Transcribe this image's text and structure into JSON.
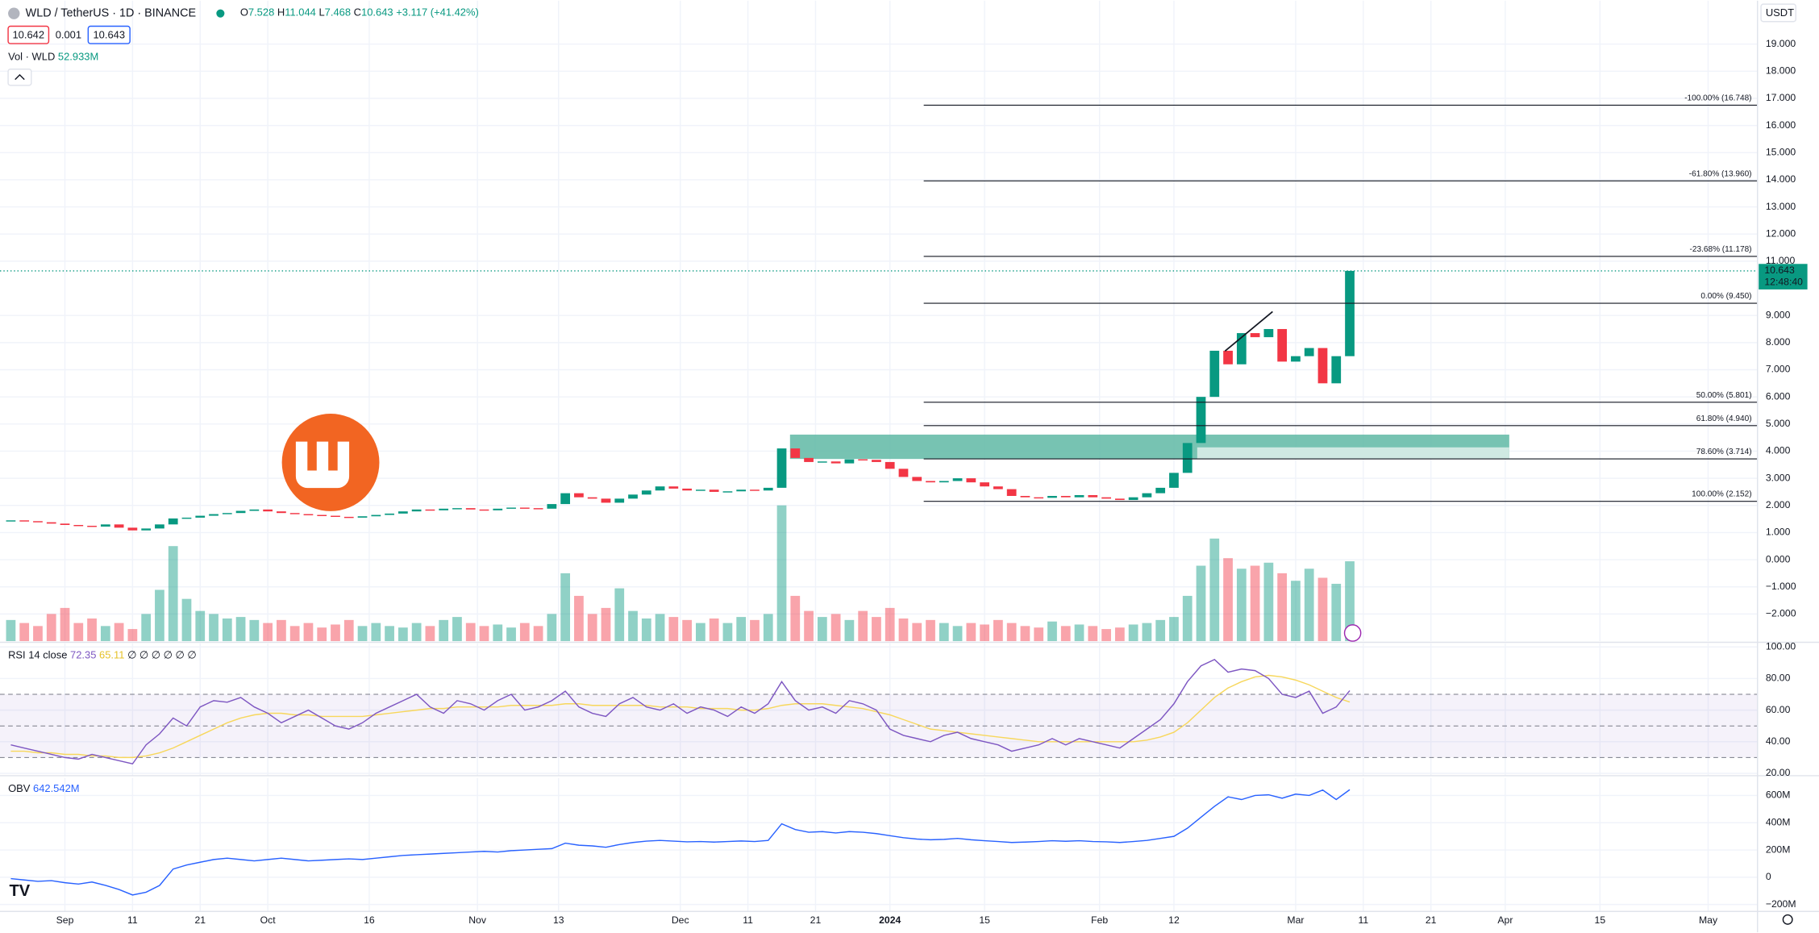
{
  "header": {
    "symbol": "WLD / TetherUS · 1D · BINANCE",
    "ohlc": [
      {
        "k": "O",
        "v": 7.528
      },
      {
        "k": "H",
        "v": 11.044
      },
      {
        "k": "L",
        "v": 7.468
      },
      {
        "k": "C",
        "v": 10.643
      }
    ],
    "change": "+3.117 (+41.42%)",
    "bid": 10.642,
    "spread": 0.001,
    "ask": 10.643,
    "vol": "Vol · WLD",
    "vol_value": "52.933M",
    "rsi": "RSI 14 close",
    "rsi_na": "∅ ∅ ∅ ∅ ∅ ∅",
    "obv": "OBV",
    "obv_value": "642.542M",
    "currency": "USDT",
    "countdown": "12:48:40"
  },
  "chart_data": [
    {
      "type": "candlestick",
      "color_up": "#089981",
      "color_down": "#f23645",
      "x": [
        -8,
        -6,
        -4,
        -2,
        0,
        2,
        4,
        6,
        8,
        10,
        12,
        14,
        16,
        18,
        20,
        22,
        24,
        26,
        28,
        30,
        32,
        34,
        36,
        38,
        40,
        42,
        44,
        46,
        48,
        50,
        52,
        54,
        56,
        58,
        60,
        62,
        64,
        66,
        68,
        70,
        72,
        74,
        76,
        78,
        80,
        82,
        84,
        86,
        88,
        90,
        92,
        94,
        96,
        98,
        100,
        102,
        104,
        106,
        108,
        110,
        112,
        114,
        116,
        118,
        120,
        122,
        124,
        126,
        128,
        130,
        132,
        134,
        136,
        138,
        140,
        142,
        144,
        146,
        148,
        150,
        152,
        154,
        156,
        158,
        160,
        162,
        164,
        166,
        168,
        170,
        172,
        174,
        176,
        178,
        180,
        182,
        184,
        186,
        188,
        190
      ],
      "values": [
        1.45,
        1.42,
        1.38,
        1.33,
        1.28,
        1.25,
        1.22,
        1.3,
        1.18,
        1.08,
        1.15,
        1.3,
        1.52,
        1.55,
        1.62,
        1.68,
        1.72,
        1.8,
        1.85,
        1.78,
        1.72,
        1.68,
        1.65,
        1.62,
        1.58,
        1.55,
        1.6,
        1.65,
        1.7,
        1.78,
        1.85,
        1.82,
        1.88,
        1.9,
        1.85,
        1.82,
        1.88,
        1.92,
        1.9,
        1.88,
        2.05,
        2.45,
        2.3,
        2.25,
        2.1,
        2.25,
        2.4,
        2.55,
        2.7,
        2.62,
        2.55,
        2.58,
        2.5,
        2.52,
        2.58,
        2.55,
        2.65,
        4.1,
        3.75,
        3.6,
        3.62,
        3.55,
        3.7,
        3.68,
        3.6,
        3.35,
        3.05,
        2.9,
        2.85,
        2.9,
        3.0,
        2.85,
        2.7,
        2.6,
        2.35,
        2.3,
        2.28,
        2.35,
        2.3,
        2.38,
        2.3,
        2.25,
        2.2,
        2.3,
        2.45,
        2.65,
        3.2,
        4.3,
        6.0,
        7.7,
        7.2,
        8.35,
        8.2,
        8.5,
        7.3,
        7.5,
        7.8,
        6.5,
        7.5,
        10.643
      ],
      "volumes": [
        14,
        12,
        10,
        18,
        22,
        12,
        15,
        10,
        12,
        8,
        18,
        34,
        63,
        28,
        20,
        18,
        15,
        16,
        14,
        12,
        14,
        10,
        12,
        9,
        11,
        14,
        10,
        12,
        10,
        9,
        12,
        10,
        14,
        16,
        12,
        10,
        11,
        9,
        12,
        10,
        18,
        45,
        30,
        18,
        22,
        35,
        20,
        15,
        18,
        16,
        14,
        12,
        15,
        12,
        16,
        14,
        18,
        90,
        30,
        20,
        16,
        18,
        14,
        20,
        16,
        22,
        15,
        12,
        14,
        12,
        10,
        12,
        11,
        14,
        12,
        10,
        9,
        13,
        10,
        11,
        10,
        8,
        9,
        11,
        12,
        14,
        16,
        30,
        50,
        68,
        55,
        48,
        50,
        52,
        45,
        40,
        48,
        42,
        38,
        52.933
      ],
      "xlim": [
        -9.6,
        250.3
      ],
      "ylim": [
        -3,
        20.6
      ],
      "xticks": [
        {
          "value": 0,
          "label": "Sep"
        },
        {
          "value": 10,
          "label": "11"
        },
        {
          "value": 20,
          "label": "21"
        },
        {
          "value": 30,
          "label": "Oct"
        },
        {
          "value": 45,
          "label": "16"
        },
        {
          "value": 61,
          "label": "Nov"
        },
        {
          "value": 73,
          "label": "13"
        },
        {
          "value": 91,
          "label": "Dec"
        },
        {
          "value": 101,
          "label": "11"
        },
        {
          "value": 111,
          "label": "21"
        },
        {
          "value": 122,
          "label": "2024"
        },
        {
          "value": 136,
          "label": "15"
        },
        {
          "value": 153,
          "label": "Feb"
        },
        {
          "value": 164,
          "label": "12"
        },
        {
          "value": 182,
          "label": "Mar"
        },
        {
          "value": 192,
          "label": "11"
        },
        {
          "value": 202,
          "label": "21"
        },
        {
          "value": 213,
          "label": "Apr"
        },
        {
          "value": 227,
          "label": "15"
        },
        {
          "value": 243,
          "label": "May"
        }
      ],
      "yticks": [
        {
          "value": 19,
          "label": "19.000"
        },
        {
          "value": 18,
          "label": "18.000"
        },
        {
          "value": 17,
          "label": "17.000"
        },
        {
          "value": 16,
          "label": "16.000"
        },
        {
          "value": 15,
          "label": "15.000"
        },
        {
          "value": 14,
          "label": "14.000"
        },
        {
          "value": 13,
          "label": "13.000"
        },
        {
          "value": 12,
          "label": "12.000"
        },
        {
          "value": 11,
          "label": "11.000"
        },
        {
          "value": 9,
          "label": "9.000"
        },
        {
          "value": 8,
          "label": "8.000"
        },
        {
          "value": 7,
          "label": "7.000"
        },
        {
          "value": 6,
          "label": "6.000"
        },
        {
          "value": 5,
          "label": "5.000"
        },
        {
          "value": 4,
          "label": "4.000"
        },
        {
          "value": 3,
          "label": "3.000"
        },
        {
          "value": 2,
          "label": "2.000"
        },
        {
          "value": 1,
          "label": "1.000"
        },
        {
          "value": 0,
          "label": "0.000"
        },
        {
          "value": -1,
          "label": "−1.000"
        },
        {
          "value": -2,
          "label": "−2.000"
        }
      ],
      "fib": [
        {
          "value": 16.748,
          "label": "-100.00% (16.748)"
        },
        {
          "value": 13.96,
          "label": "-61.80% (13.960)"
        },
        {
          "value": 11.178,
          "label": "-23.68% (11.178)"
        },
        {
          "value": 9.45,
          "label": "0.00% (9.450)"
        },
        {
          "value": 5.801,
          "label": "50.00% (5.801)"
        },
        {
          "value": 4.94,
          "label": "61.80% (4.940)"
        },
        {
          "value": 3.714,
          "label": "78.60% (3.714)"
        },
        {
          "value": 2.152,
          "label": "100.00% (2.152)"
        }
      ]
    },
    {
      "type": "line",
      "ylim": [
        18.5,
        102.2
      ],
      "levels": [
        70,
        50,
        30
      ],
      "yticks": [
        {
          "value": 100,
          "label": "100.00"
        },
        {
          "value": 80,
          "label": "80.00"
        },
        {
          "value": 60,
          "label": "60.00"
        },
        {
          "value": 40,
          "label": "40.00"
        },
        {
          "value": 20,
          "label": "20.00"
        }
      ],
      "series": [
        {
          "color": "#7e57c2",
          "values": [
            38,
            36,
            34,
            32,
            30,
            29,
            32,
            30,
            28,
            26,
            38,
            45,
            55,
            50,
            62,
            66,
            65,
            68,
            62,
            58,
            52,
            56,
            60,
            55,
            50,
            48,
            52,
            58,
            62,
            66,
            70,
            62,
            58,
            66,
            64,
            60,
            66,
            70,
            60,
            62,
            66,
            72,
            62,
            58,
            56,
            64,
            68,
            62,
            60,
            64,
            58,
            62,
            60,
            56,
            62,
            58,
            64,
            78,
            66,
            60,
            62,
            58,
            66,
            64,
            60,
            48,
            44,
            42,
            40,
            44,
            46,
            42,
            40,
            38,
            34,
            36,
            38,
            42,
            38,
            42,
            40,
            38,
            36,
            42,
            48,
            54,
            64,
            78,
            88,
            92,
            84,
            86,
            85,
            80,
            70,
            68,
            72,
            58,
            62,
            72.35
          ]
        },
        {
          "color": "#f7d75c",
          "values": [
            34,
            34,
            33,
            33,
            32,
            32,
            31,
            31,
            30,
            30,
            31,
            33,
            36,
            40,
            44,
            48,
            52,
            55,
            57,
            58,
            58,
            57,
            57,
            56,
            56,
            56,
            56,
            57,
            58,
            59,
            60,
            61,
            61,
            62,
            62,
            62,
            62,
            63,
            63,
            63,
            63,
            64,
            64,
            63,
            63,
            63,
            63,
            63,
            62,
            62,
            62,
            61,
            61,
            61,
            60,
            60,
            61,
            63,
            64,
            64,
            64,
            63,
            62,
            61,
            59,
            57,
            54,
            51,
            48,
            47,
            46,
            45,
            44,
            43,
            42,
            41,
            40,
            40,
            40,
            40,
            40,
            40,
            40,
            40,
            41,
            43,
            46,
            52,
            60,
            68,
            74,
            78,
            81,
            82,
            81,
            79,
            76,
            72,
            68,
            65.11
          ]
        }
      ]
    },
    {
      "type": "line",
      "ylim": [
        -251,
        728
      ],
      "yticks": [
        {
          "value": 600,
          "label": "600M"
        },
        {
          "value": 400,
          "label": "400M"
        },
        {
          "value": 200,
          "label": "200M"
        },
        0,
        {
          "value": -200,
          "label": "−200M"
        }
      ],
      "series": [
        {
          "color": "#2962ff",
          "values": [
            -10,
            -20,
            -30,
            -25,
            -40,
            -50,
            -35,
            -60,
            -90,
            -130,
            -110,
            -60,
            60,
            90,
            110,
            130,
            140,
            130,
            120,
            130,
            140,
            130,
            120,
            125,
            130,
            135,
            130,
            140,
            150,
            160,
            165,
            170,
            175,
            180,
            185,
            190,
            185,
            195,
            200,
            205,
            210,
            250,
            235,
            230,
            220,
            240,
            255,
            265,
            270,
            265,
            260,
            262,
            258,
            262,
            266,
            262,
            270,
            392,
            350,
            330,
            335,
            325,
            335,
            330,
            320,
            305,
            290,
            280,
            275,
            278,
            285,
            275,
            268,
            262,
            255,
            258,
            262,
            268,
            264,
            268,
            262,
            260,
            255,
            262,
            270,
            285,
            300,
            360,
            440,
            520,
            590,
            570,
            600,
            605,
            580,
            610,
            600,
            640,
            570,
            642.542
          ]
        }
      ]
    }
  ]
}
